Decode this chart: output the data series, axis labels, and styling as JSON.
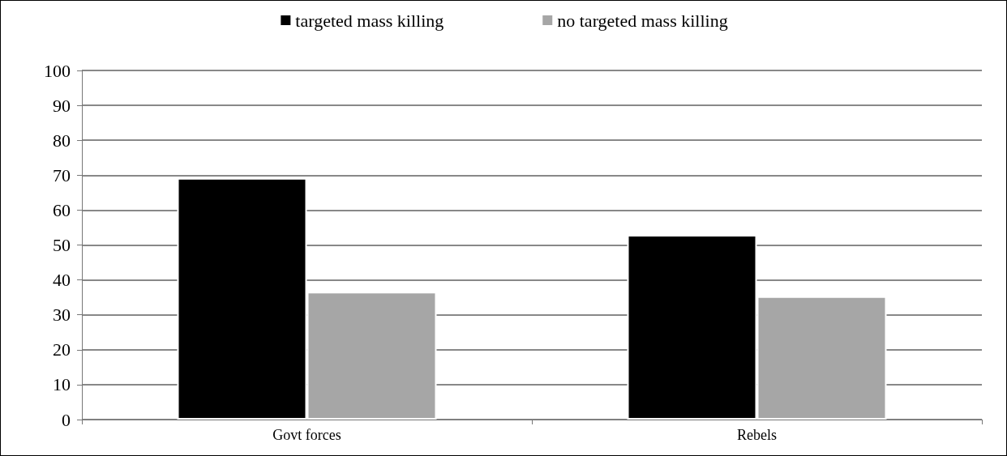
{
  "chart_data": {
    "type": "bar",
    "categories": [
      "Govt forces",
      "Rebels"
    ],
    "series": [
      {
        "name": "targeted mass killing",
        "color": "#000000",
        "values": [
          69.2,
          52.9
        ]
      },
      {
        "name": "no targeted mass killing",
        "color": "#a6a6a6",
        "values": [
          36.6,
          35.3
        ]
      }
    ],
    "ylim": [
      0,
      100
    ],
    "yticks": [
      0,
      10,
      20,
      30,
      40,
      50,
      60,
      70,
      80,
      90,
      100
    ],
    "grid": "y",
    "legend": "top"
  }
}
